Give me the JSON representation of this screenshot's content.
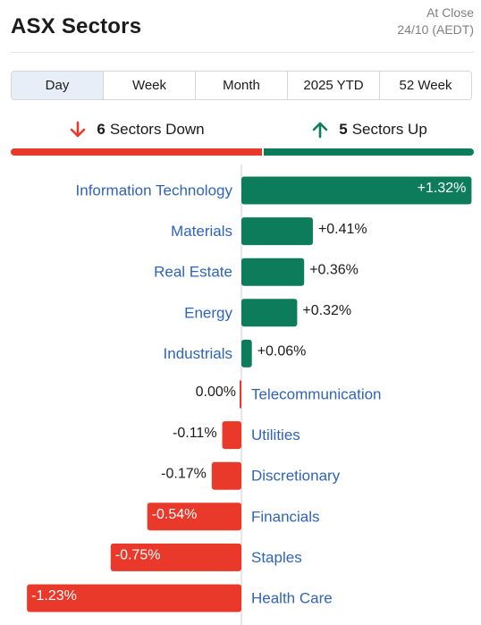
{
  "header": {
    "title": "ASX Sectors",
    "status_line1": "At Close",
    "status_line2": "24/10 (AEDT)"
  },
  "tabs": [
    {
      "label": "Day",
      "active": true
    },
    {
      "label": "Week",
      "active": false
    },
    {
      "label": "Month",
      "active": false
    },
    {
      "label": "2025 YTD",
      "active": false
    },
    {
      "label": "52 Week",
      "active": false
    }
  ],
  "summary": {
    "down_count": "6",
    "down_label": "Sectors Down",
    "up_count": "5",
    "up_label": "Sectors Up",
    "down_color": "#e8392b",
    "up_color": "#0d7c5b"
  },
  "chart_data": {
    "type": "bar",
    "orientation": "horizontal",
    "categories": [
      "Information Technology",
      "Materials",
      "Real Estate",
      "Energy",
      "Industrials",
      "Telecommunication",
      "Utilities",
      "Discretionary",
      "Financials",
      "Staples",
      "Health Care"
    ],
    "values": [
      1.32,
      0.41,
      0.36,
      0.32,
      0.06,
      0.0,
      -0.11,
      -0.17,
      -0.54,
      -0.75,
      -1.23
    ],
    "value_labels": [
      "+1.32%",
      "+0.41%",
      "+0.36%",
      "+0.32%",
      "+0.06%",
      "0.00%",
      "-0.11%",
      "-0.17%",
      "-0.54%",
      "-0.75%",
      "-1.23%"
    ],
    "positive_color": "#0d7c5b",
    "negative_color": "#e8392b",
    "label_color": "#2f64b8"
  }
}
